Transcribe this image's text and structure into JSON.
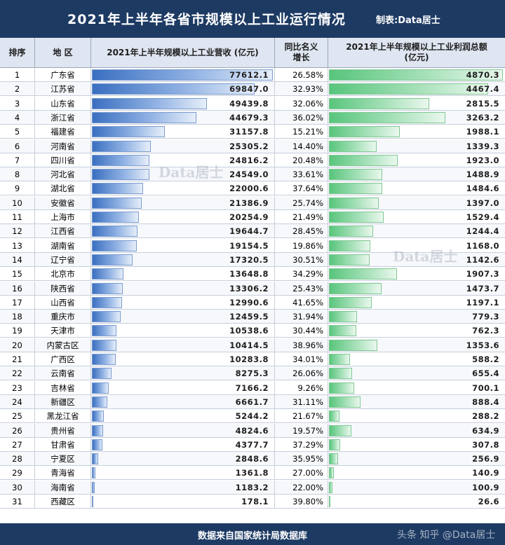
{
  "header": {
    "title": "2021年上半年各省市规模以上工业运行情况",
    "credit": "制表:Data居士"
  },
  "columns": {
    "rank": "排序",
    "region": "地 区",
    "revenue": "2021年上半年规模以上工业营收 (亿元)",
    "growth": "同比名义增长",
    "profit": "2021年上半年规模以上工业利润总额 (亿元)"
  },
  "watermarks": [
    "Data居士",
    "Data居士"
  ],
  "footer": {
    "source": "数据来自国家统计局数据库",
    "corner_watermark": "头条 知乎 @Data居士"
  },
  "colors": {
    "header_bg": "#1d3a63",
    "revenue_bar": "#3a6fc0",
    "profit_bar": "#58c57c"
  },
  "chart_data": {
    "type": "table",
    "columns": [
      "排序",
      "地 区",
      "2021年上半年规模以上工业营收 (亿元)",
      "同比名义增长",
      "2021年上半年规模以上工业利润总额 (亿元)"
    ],
    "rows": [
      {
        "rank": "1",
        "region": "广东省",
        "revenue": 77612.1,
        "revenue_text": "77612.1",
        "growth": "26.58%",
        "profit": 4870.3,
        "profit_text": "4870.3"
      },
      {
        "rank": "2",
        "region": "江苏省",
        "revenue": 69847.0,
        "revenue_text": "69847.0",
        "growth": "32.93%",
        "profit": 4467.4,
        "profit_text": "4467.4"
      },
      {
        "rank": "3",
        "region": "山东省",
        "revenue": 49439.8,
        "revenue_text": "49439.8",
        "growth": "32.06%",
        "profit": 2815.5,
        "profit_text": "2815.5"
      },
      {
        "rank": "4",
        "region": "浙江省",
        "revenue": 44679.3,
        "revenue_text": "44679.3",
        "growth": "36.02%",
        "profit": 3263.2,
        "profit_text": "3263.2"
      },
      {
        "rank": "5",
        "region": "福建省",
        "revenue": 31157.8,
        "revenue_text": "31157.8",
        "growth": "15.21%",
        "profit": 1988.1,
        "profit_text": "1988.1"
      },
      {
        "rank": "6",
        "region": "河南省",
        "revenue": 25305.2,
        "revenue_text": "25305.2",
        "growth": "14.40%",
        "profit": 1339.3,
        "profit_text": "1339.3"
      },
      {
        "rank": "7",
        "region": "四川省",
        "revenue": 24816.2,
        "revenue_text": "24816.2",
        "growth": "20.48%",
        "profit": 1923.0,
        "profit_text": "1923.0"
      },
      {
        "rank": "8",
        "region": "河北省",
        "revenue": 24549.0,
        "revenue_text": "24549.0",
        "growth": "33.61%",
        "profit": 1488.9,
        "profit_text": "1488.9"
      },
      {
        "rank": "9",
        "region": "湖北省",
        "revenue": 22000.6,
        "revenue_text": "22000.6",
        "growth": "37.64%",
        "profit": 1484.6,
        "profit_text": "1484.6"
      },
      {
        "rank": "10",
        "region": "安徽省",
        "revenue": 21386.9,
        "revenue_text": "21386.9",
        "growth": "25.74%",
        "profit": 1397.0,
        "profit_text": "1397.0"
      },
      {
        "rank": "11",
        "region": "上海市",
        "revenue": 20254.9,
        "revenue_text": "20254.9",
        "growth": "21.49%",
        "profit": 1529.4,
        "profit_text": "1529.4"
      },
      {
        "rank": "12",
        "region": "江西省",
        "revenue": 19644.7,
        "revenue_text": "19644.7",
        "growth": "28.45%",
        "profit": 1244.4,
        "profit_text": "1244.4"
      },
      {
        "rank": "13",
        "region": "湖南省",
        "revenue": 19154.5,
        "revenue_text": "19154.5",
        "growth": "19.86%",
        "profit": 1168.0,
        "profit_text": "1168.0"
      },
      {
        "rank": "14",
        "region": "辽宁省",
        "revenue": 17320.5,
        "revenue_text": "17320.5",
        "growth": "30.51%",
        "profit": 1142.6,
        "profit_text": "1142.6"
      },
      {
        "rank": "15",
        "region": "北京市",
        "revenue": 13648.8,
        "revenue_text": "13648.8",
        "growth": "34.29%",
        "profit": 1907.3,
        "profit_text": "1907.3"
      },
      {
        "rank": "16",
        "region": "陕西省",
        "revenue": 13306.2,
        "revenue_text": "13306.2",
        "growth": "25.43%",
        "profit": 1473.7,
        "profit_text": "1473.7"
      },
      {
        "rank": "17",
        "region": "山西省",
        "revenue": 12990.6,
        "revenue_text": "12990.6",
        "growth": "41.65%",
        "profit": 1197.1,
        "profit_text": "1197.1"
      },
      {
        "rank": "18",
        "region": "重庆市",
        "revenue": 12459.5,
        "revenue_text": "12459.5",
        "growth": "31.94%",
        "profit": 779.3,
        "profit_text": "779.3"
      },
      {
        "rank": "19",
        "region": "天津市",
        "revenue": 10538.6,
        "revenue_text": "10538.6",
        "growth": "30.44%",
        "profit": 762.3,
        "profit_text": "762.3"
      },
      {
        "rank": "20",
        "region": "内蒙古区",
        "revenue": 10414.5,
        "revenue_text": "10414.5",
        "growth": "38.96%",
        "profit": 1353.6,
        "profit_text": "1353.6"
      },
      {
        "rank": "21",
        "region": "广西区",
        "revenue": 10283.8,
        "revenue_text": "10283.8",
        "growth": "34.01%",
        "profit": 588.2,
        "profit_text": "588.2"
      },
      {
        "rank": "22",
        "region": "云南省",
        "revenue": 8275.3,
        "revenue_text": "8275.3",
        "growth": "26.06%",
        "profit": 655.4,
        "profit_text": "655.4"
      },
      {
        "rank": "23",
        "region": "吉林省",
        "revenue": 7166.2,
        "revenue_text": "7166.2",
        "growth": "9.26%",
        "profit": 700.1,
        "profit_text": "700.1"
      },
      {
        "rank": "24",
        "region": "新疆区",
        "revenue": 6661.7,
        "revenue_text": "6661.7",
        "growth": "31.11%",
        "profit": 888.4,
        "profit_text": "888.4"
      },
      {
        "rank": "25",
        "region": "黑龙江省",
        "revenue": 5244.2,
        "revenue_text": "5244.2",
        "growth": "21.67%",
        "profit": 288.2,
        "profit_text": "288.2"
      },
      {
        "rank": "26",
        "region": "贵州省",
        "revenue": 4824.6,
        "revenue_text": "4824.6",
        "growth": "19.57%",
        "profit": 634.9,
        "profit_text": "634.9"
      },
      {
        "rank": "27",
        "region": "甘肃省",
        "revenue": 4377.7,
        "revenue_text": "4377.7",
        "growth": "37.29%",
        "profit": 307.8,
        "profit_text": "307.8"
      },
      {
        "rank": "28",
        "region": "宁夏区",
        "revenue": 2848.6,
        "revenue_text": "2848.6",
        "growth": "35.95%",
        "profit": 256.9,
        "profit_text": "256.9"
      },
      {
        "rank": "29",
        "region": "青海省",
        "revenue": 1361.8,
        "revenue_text": "1361.8",
        "growth": "27.00%",
        "profit": 140.9,
        "profit_text": "140.9"
      },
      {
        "rank": "30",
        "region": "海南省",
        "revenue": 1183.2,
        "revenue_text": "1183.2",
        "growth": "22.00%",
        "profit": 100.9,
        "profit_text": "100.9"
      },
      {
        "rank": "31",
        "region": "西藏区",
        "revenue": 178.1,
        "revenue_text": "178.1",
        "growth": "39.80%",
        "profit": 26.6,
        "profit_text": "26.6"
      }
    ],
    "revenue_max": 77612.1,
    "profit_max": 4870.3
  }
}
